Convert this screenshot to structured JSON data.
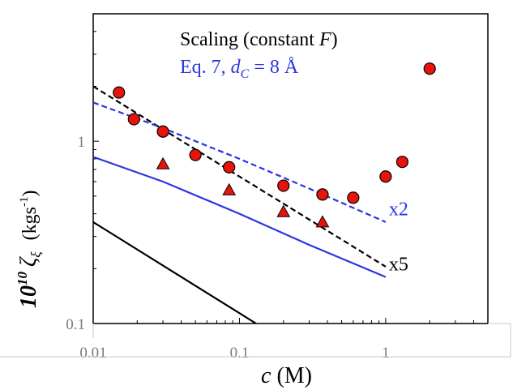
{
  "chart_data": {
    "type": "scatter",
    "x_scale": "log",
    "y_scale": "log",
    "xlim": [
      0.01,
      5
    ],
    "ylim": [
      0.1,
      5
    ],
    "x_ticks": [
      {
        "value": 0.01,
        "label": "0.01"
      },
      {
        "value": 0.1,
        "label": "0.1"
      },
      {
        "value": 1,
        "label": "1"
      }
    ],
    "y_ticks": [
      {
        "value": 0.1,
        "label": "0.1"
      },
      {
        "value": 1,
        "label": "1"
      }
    ],
    "xlabel": {
      "var": "c",
      "unit": " (M)"
    },
    "ylabel": {
      "prefix": "10",
      "exp": "10",
      "symbol": "ζ",
      "sub": "ξ",
      "unit_open": "(kgs",
      "unit_exp": "-1",
      "unit_close": ")"
    },
    "legend": {
      "line1": {
        "text": "Scaling (constant ",
        "italic": "F",
        "end": ")",
        "color": "#000000"
      },
      "line2": {
        "text": "Eq. 7, ",
        "var": "d",
        "sub": "C",
        "end": " = 8 Å",
        "color": "#2a35e0"
      }
    },
    "annotations": [
      {
        "text": "x2",
        "x": 1.0,
        "y": 0.4,
        "color": "#2a35e0"
      },
      {
        "text": "x5",
        "x": 1.0,
        "y": 0.2,
        "color": "#000000"
      }
    ],
    "grid": false,
    "series": [
      {
        "marker": "circle",
        "color": "#e8140c",
        "points": [
          [
            0.015,
            1.85
          ],
          [
            0.019,
            1.32
          ],
          [
            0.03,
            1.13
          ],
          [
            0.05,
            0.84
          ],
          [
            0.085,
            0.72
          ],
          [
            0.2,
            0.57
          ],
          [
            0.37,
            0.51
          ],
          [
            0.6,
            0.49
          ],
          [
            1.0,
            0.64
          ],
          [
            1.3,
            0.77
          ],
          [
            2.0,
            2.5
          ]
        ]
      },
      {
        "marker": "triangle",
        "color": "#e8140c",
        "points": [
          [
            0.03,
            0.75
          ],
          [
            0.085,
            0.54
          ],
          [
            0.2,
            0.41
          ],
          [
            0.37,
            0.36
          ]
        ]
      },
      {
        "line": "solid",
        "color": "#000000",
        "points": [
          [
            0.01,
            0.36
          ],
          [
            0.13,
            0.1
          ]
        ]
      },
      {
        "line": "dashed",
        "color": "#000000",
        "points": [
          [
            0.01,
            2.0
          ],
          [
            1.0,
            0.205
          ]
        ]
      },
      {
        "line": "solid",
        "color": "#2a35e0",
        "points": [
          [
            0.01,
            0.82
          ],
          [
            0.03,
            0.6
          ],
          [
            0.1,
            0.4
          ],
          [
            0.3,
            0.27
          ],
          [
            1.0,
            0.18
          ]
        ]
      },
      {
        "line": "dashed",
        "color": "#2a35e0",
        "points": [
          [
            0.01,
            1.63
          ],
          [
            0.03,
            1.18
          ],
          [
            0.1,
            0.8
          ],
          [
            0.3,
            0.55
          ],
          [
            1.0,
            0.36
          ]
        ]
      }
    ]
  }
}
